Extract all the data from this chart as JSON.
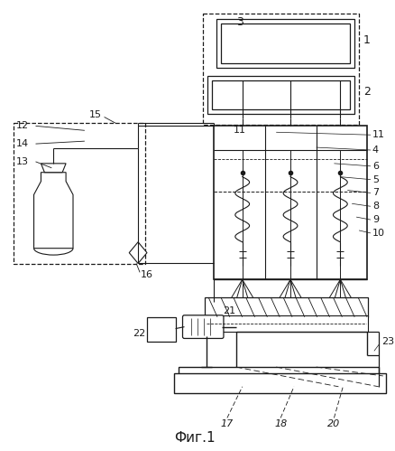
{
  "title": "Фиг.1",
  "bg_color": "#ffffff",
  "line_color": "#1a1a1a",
  "lw": 0.9
}
